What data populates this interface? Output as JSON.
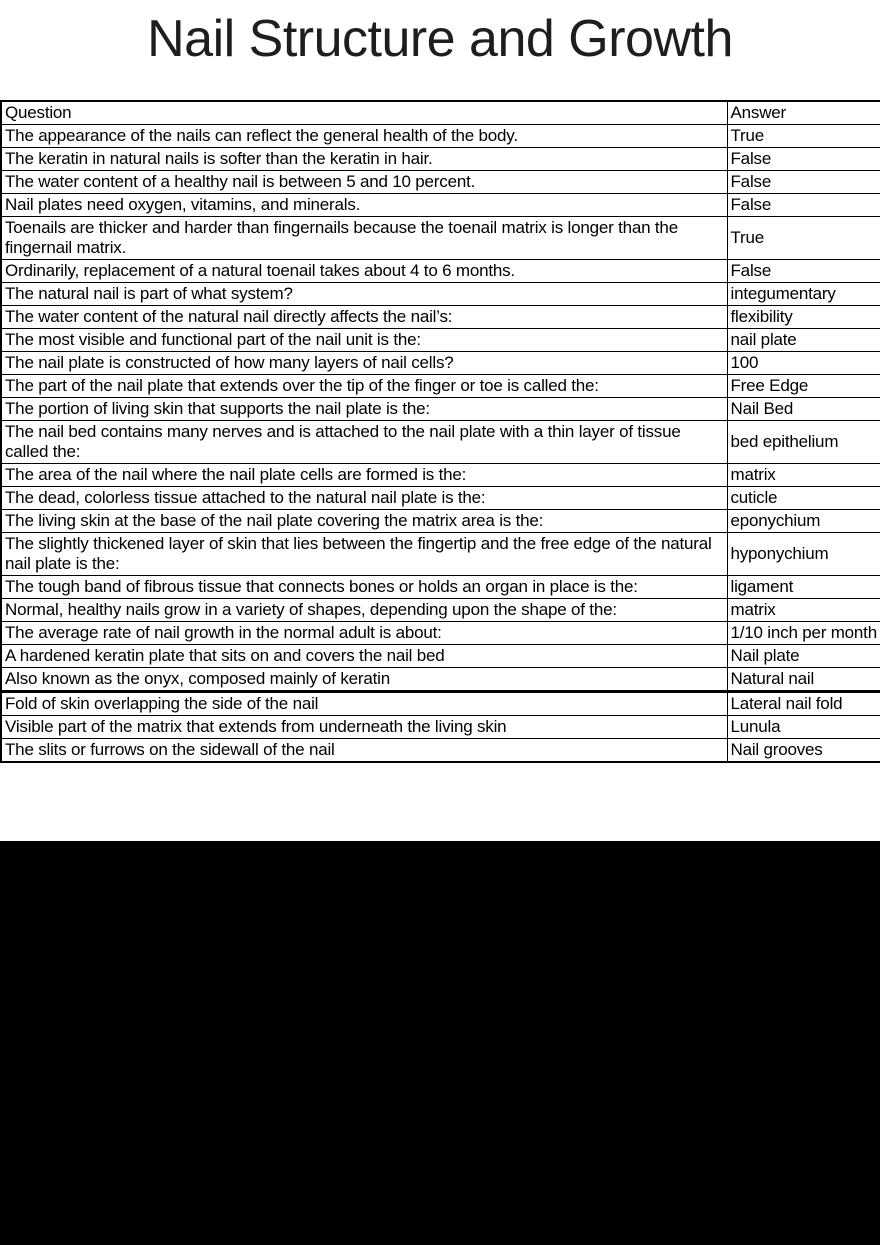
{
  "page": {
    "title": "Nail Structure and Growth"
  },
  "table": {
    "headers": {
      "question": "Question",
      "answer": "Answer"
    },
    "rows": [
      {
        "question": "The appearance of the nails can reflect the general health of the body.",
        "answer": "True"
      },
      {
        "question": "The keratin in natural nails is softer than the keratin in hair.",
        "answer": "False"
      },
      {
        "question": "The water content of a healthy nail is between 5 and 10 percent.",
        "answer": "False"
      },
      {
        "question": "Nail plates need oxygen, vitamins, and minerals.",
        "answer": "False"
      },
      {
        "question": "Toenails are thicker and harder than fingernails because the toenail matrix is longer than the fingernail matrix.",
        "answer": "True"
      },
      {
        "question": "Ordinarily, replacement of a natural toenail takes about 4 to 6 months.",
        "answer": "False"
      },
      {
        "question": "The natural nail is part of what system?",
        "answer": "integumentary"
      },
      {
        "question": "The water content of the natural nail directly affects the nail’s:",
        "answer": "flexibility"
      },
      {
        "question": "The most visible and functional part of the nail unit is the:",
        "answer": "nail plate"
      },
      {
        "question": "The nail plate is constructed of how many layers of nail cells?",
        "answer": "100"
      },
      {
        "question": "The part of the nail plate that extends over the tip of the finger or toe is called the:",
        "answer": "Free Edge"
      },
      {
        "question": "The portion of living skin that supports the nail plate is the:",
        "answer": "Nail Bed"
      },
      {
        "question": "The nail bed contains many nerves and is attached to the nail plate with a thin layer of tissue called the:",
        "answer": "bed epithelium"
      },
      {
        "question": "The area of the nail where the nail plate cells are formed is the:",
        "answer": "matrix"
      },
      {
        "question": "The dead, colorless tissue attached to the natural nail plate is the:",
        "answer": "cuticle"
      },
      {
        "question": "The living skin at the base of the nail plate covering the matrix area is the:",
        "answer": "eponychium"
      },
      {
        "question": "The slightly thickened layer of skin that lies between the fingertip and the free edge of the natural nail plate is the:",
        "answer": "hyponychium"
      },
      {
        "question": "The tough band of fibrous tissue that connects bones or holds an organ in place is the:",
        "answer": "ligament"
      },
      {
        "question": "Normal, healthy nails grow in a variety of shapes, depending upon the shape of the:",
        "answer": "matrix"
      },
      {
        "question": "The average rate of nail growth in the normal adult is about:",
        "answer": "1/10 inch per month"
      },
      {
        "question": "A hardened keratin plate that sits on and covers the nail bed",
        "answer": "Nail plate"
      },
      {
        "question": "Also known as the onyx, composed mainly of keratin",
        "answer": "Natural nail"
      },
      {
        "question": "Fold of skin overlapping the side of the nail",
        "answer": "Lateral nail fold",
        "section_break_before": true
      },
      {
        "question": "Visible part of the matrix that extends from underneath the living skin",
        "answer": "Lunula"
      },
      {
        "question": "The slits or furrows on the sidewall of the nail",
        "answer": "Nail grooves"
      }
    ]
  },
  "colors": {
    "background": "#ffffff",
    "text": "#000000",
    "title_text": "#1e1e1e",
    "table_border": "#000000",
    "footer_block": "#000000"
  }
}
